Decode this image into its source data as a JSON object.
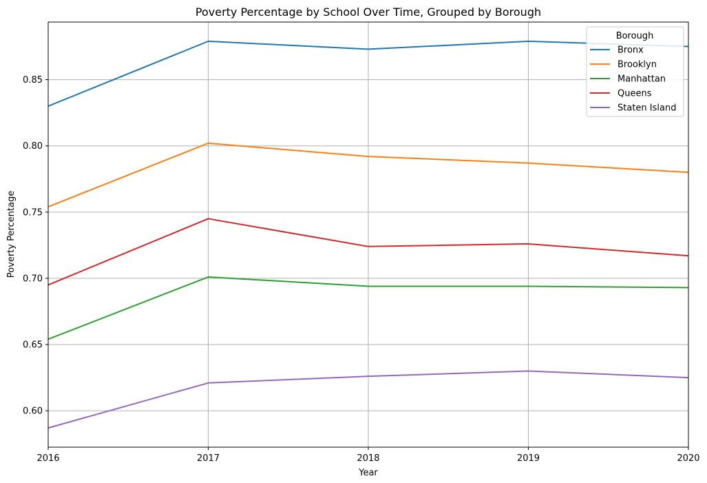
{
  "chart_data": {
    "type": "line",
    "title": "Poverty Percentage by School Over Time, Grouped by Borough",
    "xlabel": "Year",
    "ylabel": "Poverty Percentage",
    "x": [
      2016,
      2017,
      2018,
      2019,
      2020
    ],
    "xlim": [
      2016,
      2020
    ],
    "ylim": [
      0.5725,
      0.8935
    ],
    "yticks": [
      0.6,
      0.65,
      0.7,
      0.75,
      0.8,
      0.85
    ],
    "grid": true,
    "legend": {
      "title": "Borough",
      "placement": "top-right"
    },
    "series": [
      {
        "name": "Bronx",
        "color": "#1f77b4",
        "values": [
          0.83,
          0.879,
          0.873,
          0.879,
          0.875
        ]
      },
      {
        "name": "Brooklyn",
        "color": "#ff7f0e",
        "values": [
          0.754,
          0.802,
          0.792,
          0.787,
          0.78
        ]
      },
      {
        "name": "Manhattan",
        "color": "#2ca02c",
        "values": [
          0.654,
          0.701,
          0.694,
          0.694,
          0.693
        ]
      },
      {
        "name": "Queens",
        "color": "#d62728",
        "values": [
          0.695,
          0.745,
          0.724,
          0.726,
          0.717
        ]
      },
      {
        "name": "Staten Island",
        "color": "#9467bd",
        "values": [
          0.587,
          0.621,
          0.626,
          0.63,
          0.625
        ]
      }
    ]
  }
}
